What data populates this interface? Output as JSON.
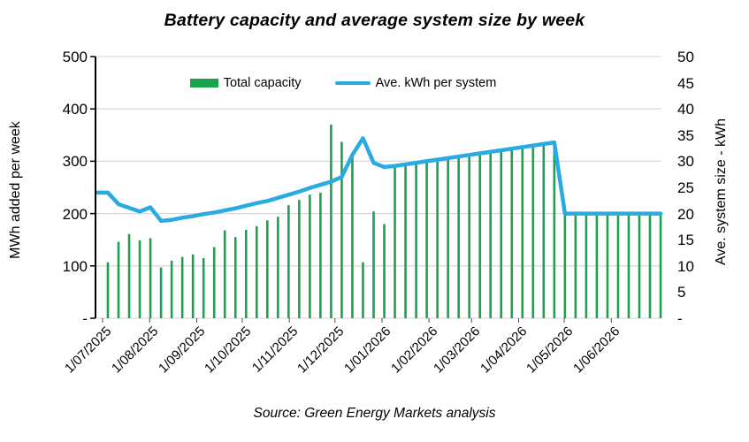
{
  "title": "Battery capacity and average system size by week",
  "source_note": "Source: Green Energy Markets analysis",
  "colors": {
    "bar_green": "#1BA24E",
    "line_blue": "#29ABE2",
    "gridline": "#D9D9D9",
    "axis_black": "#000000"
  },
  "legend": {
    "items": [
      {
        "label": "Total capacity",
        "type": "bar",
        "color": "#1BA24E"
      },
      {
        "label": "Ave. kWh per system",
        "type": "line",
        "color": "#29ABE2"
      }
    ]
  },
  "left_axis": {
    "title": "MWh added per week",
    "max": 500,
    "tick_step": 100,
    "tick_labels": [
      "500",
      "400",
      "300",
      "200",
      "100",
      "-"
    ]
  },
  "right_axis": {
    "title": "Ave. system size - kWh",
    "max": 50,
    "tick_step": 5,
    "tick_labels": [
      "50",
      "45",
      "40",
      "35",
      "30",
      "25",
      "20",
      "15",
      "10",
      "5",
      "-"
    ]
  },
  "x_axis": {
    "month_labels": [
      {
        "label": "1/07/2025",
        "week_pos": 0
      },
      {
        "label": "1/08/2025",
        "week_pos": 4.43
      },
      {
        "label": "1/09/2025",
        "week_pos": 8.86
      },
      {
        "label": "1/10/2025",
        "week_pos": 13.14
      },
      {
        "label": "1/11/2025",
        "week_pos": 17.57
      },
      {
        "label": "1/12/2025",
        "week_pos": 21.86
      },
      {
        "label": "1/01/2026",
        "week_pos": 26.29
      },
      {
        "label": "1/02/2026",
        "week_pos": 30.71
      },
      {
        "label": "1/03/2026",
        "week_pos": 34.71
      },
      {
        "label": "1/04/2026",
        "week_pos": 39.14
      },
      {
        "label": "1/05/2026",
        "week_pos": 43.43
      },
      {
        "label": "1/06/2026",
        "week_pos": 47.86
      }
    ]
  },
  "chart_data": {
    "type": "combo",
    "title": "Battery capacity and average system size by week",
    "x_unit": "week",
    "weeks": 53,
    "x_tick_labels": [
      "1/07/2025",
      "1/08/2025",
      "1/09/2025",
      "1/10/2025",
      "1/11/2025",
      "1/12/2025",
      "1/01/2026",
      "1/02/2026",
      "1/03/2026",
      "1/04/2026",
      "1/05/2026",
      "1/06/2026"
    ],
    "left_ylabel": "MWh added per week",
    "left_ylim": [
      0,
      500
    ],
    "right_ylabel": "Ave. system size - kWh",
    "right_ylim": [
      0,
      50
    ],
    "grid": "horizontal",
    "legend_position": "top-center",
    "series": [
      {
        "name": "Total capacity",
        "type": "bar",
        "axis": "left",
        "color": "#1BA24E",
        "values": [
          107,
          146,
          161,
          149,
          153,
          97,
          110,
          117,
          122,
          115,
          136,
          168,
          155,
          169,
          176,
          187,
          194,
          216,
          226,
          236,
          240,
          370,
          337,
          317,
          107,
          204,
          180,
          291,
          294,
          297,
          300,
          303,
          306,
          309,
          312,
          315,
          318,
          321,
          324,
          327,
          330,
          333,
          336,
          200,
          200,
          200,
          200,
          200,
          200,
          200,
          200,
          200,
          200
        ]
      },
      {
        "name": "Ave. kWh per system",
        "type": "line",
        "axis": "right",
        "color": "#29ABE2",
        "values": [
          24,
          21.8,
          21.1,
          20.4,
          21.2,
          18.6,
          18.8,
          19.2,
          19.5,
          19.9,
          20.2,
          20.6,
          21,
          21.5,
          22,
          22.4,
          23,
          23.6,
          24.2,
          24.9,
          25.5,
          26.1,
          27,
          31.2,
          34.4,
          29.7,
          28.9,
          29.1,
          29.4,
          29.7,
          30,
          30.3,
          30.6,
          30.9,
          31.2,
          31.5,
          31.8,
          32.1,
          32.4,
          32.7,
          33,
          33.3,
          33.6,
          20,
          20,
          20,
          20,
          20,
          20,
          20,
          20,
          20,
          20
        ]
      }
    ]
  }
}
